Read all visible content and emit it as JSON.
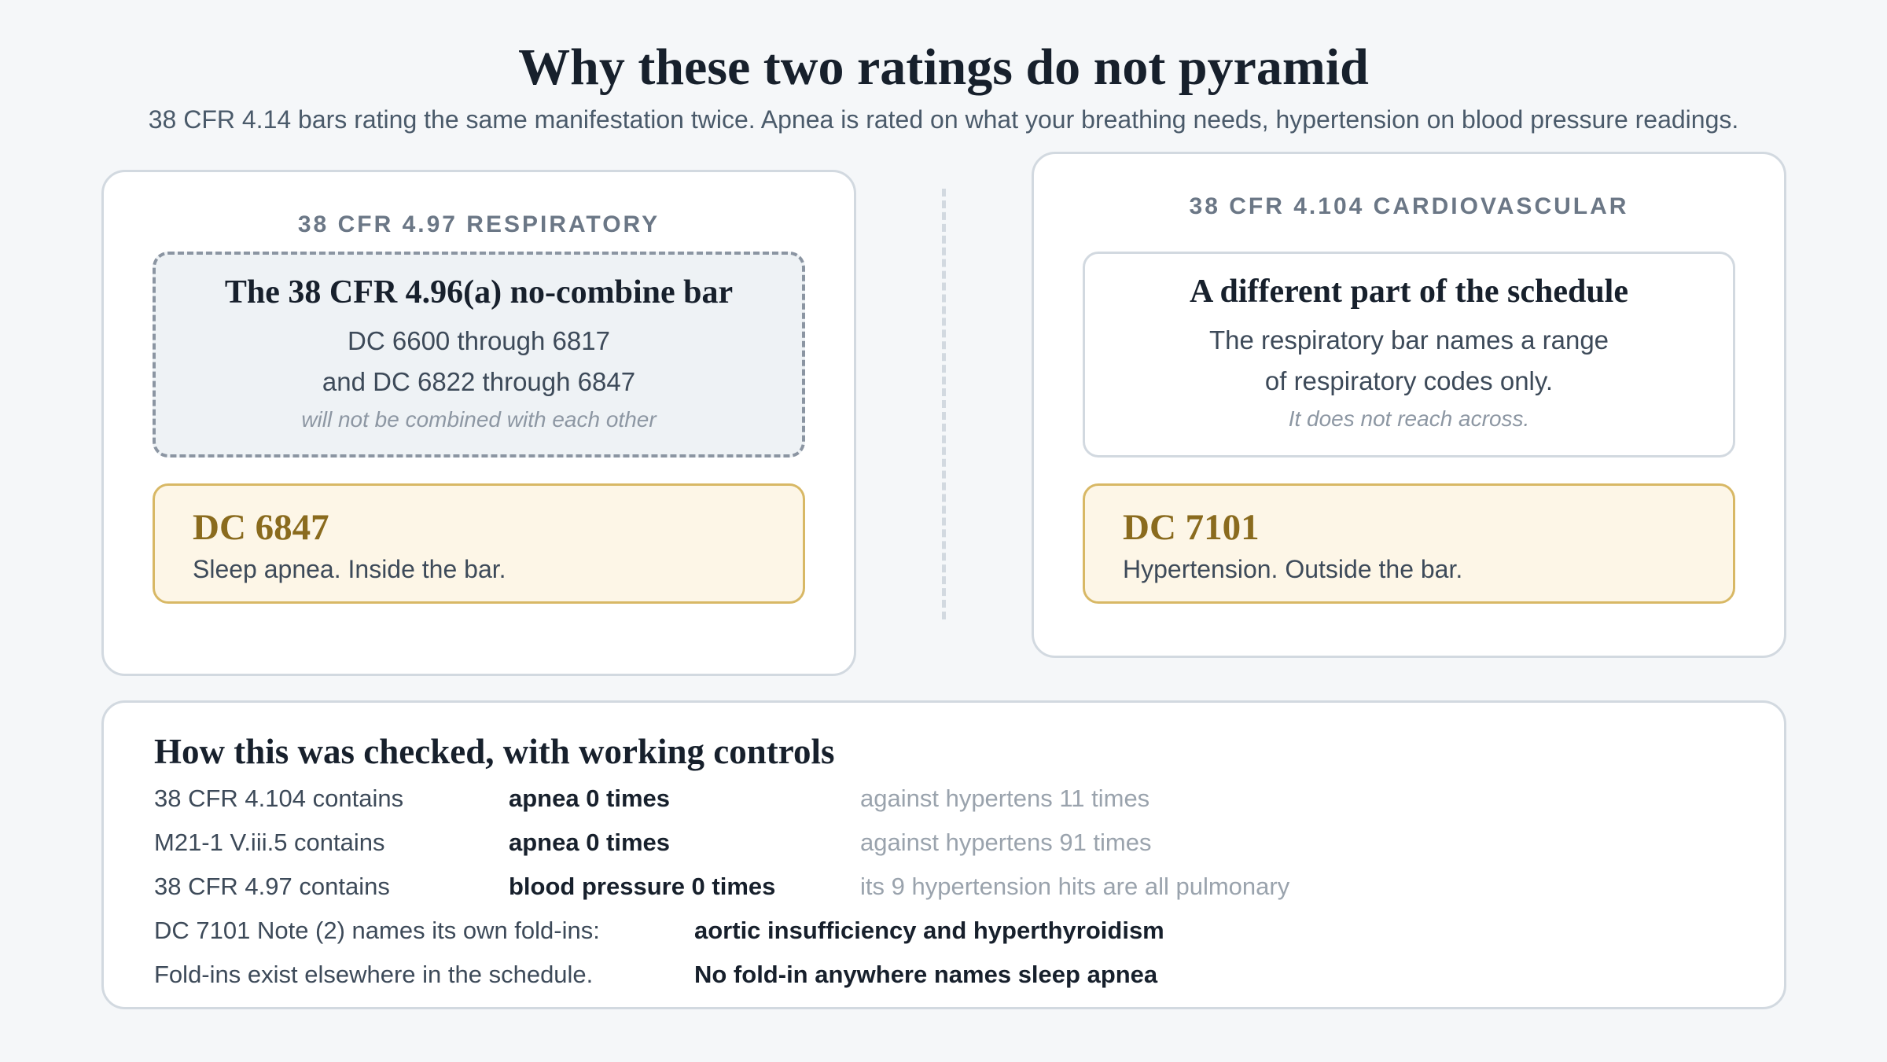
{
  "header": {
    "title": "Why these two ratings do not pyramid",
    "subtitle": "38 CFR 4.14 bars rating the same manifestation twice. Apnea is rated on what your breathing needs, hypertension on blood pressure readings."
  },
  "left_panel": {
    "label": "38 CFR 4.97 RESPIRATORY",
    "box": {
      "title": "The 38 CFR 4.96(a) no-combine bar",
      "lines": [
        "DC 6600 through 6817",
        "and DC 6822 through 6847"
      ],
      "note": "will not be combined with each other"
    },
    "code": {
      "title": "DC 6847",
      "description": "Sleep apnea. Inside the bar."
    }
  },
  "right_panel": {
    "label": "38 CFR 4.104 CARDIOVASCULAR",
    "box": {
      "title": "A different part of the schedule",
      "lines": [
        "The respiratory bar names a range",
        "of respiratory codes only."
      ],
      "note": "It does not reach across."
    },
    "code": {
      "title": "DC 7101",
      "description": "Hypertension. Outside the bar."
    }
  },
  "checks": {
    "title": "How this was checked, with working controls",
    "rows": [
      [
        "38 CFR 4.104 contains",
        "apnea 0 times",
        "against hypertens 11 times"
      ],
      [
        "M21-1 V.iii.5 contains",
        "apnea 0 times",
        "against hypertens 91 times"
      ],
      [
        "38 CFR 4.97 contains",
        "blood pressure 0 times",
        "its 9 hypertension hits are all pulmonary"
      ],
      [
        "DC 7101 Note (2) names its own fold-ins:",
        "aortic insufficiency and hyperthyroidism"
      ],
      [
        "Fold-ins exist elsewhere in the schedule.",
        "No fold-in anywhere names sleep apnea"
      ]
    ]
  }
}
